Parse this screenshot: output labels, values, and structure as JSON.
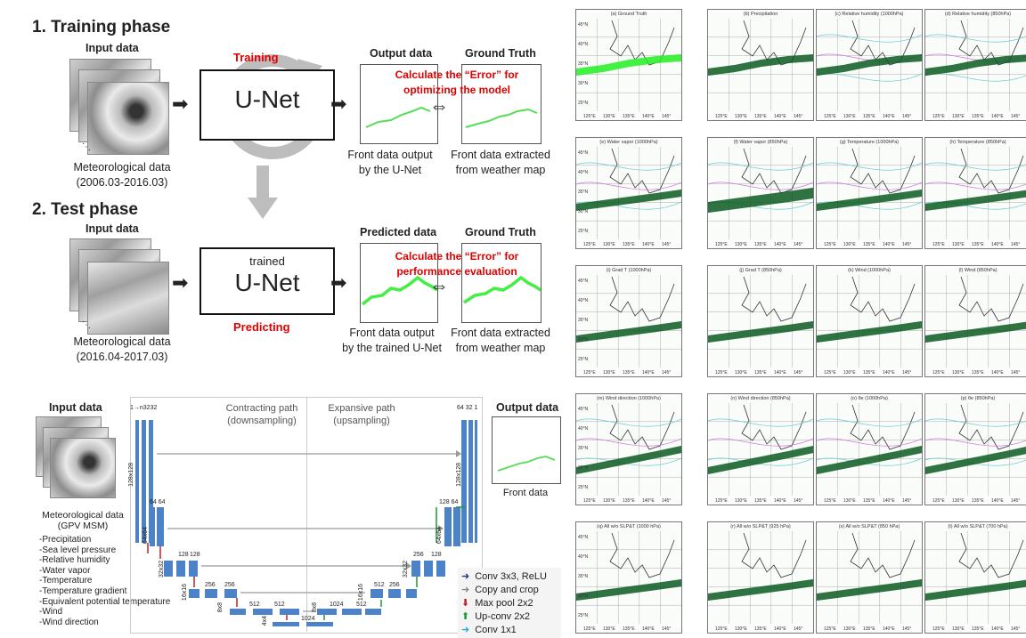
{
  "training": {
    "title": "1. Training phase",
    "input_label": "Input data",
    "input_caption": "Meteorological data",
    "input_range": "(2006.03-2016.03)",
    "net_label": "U-Net",
    "action": "Training",
    "output_label": "Output data",
    "truth_label": "Ground Truth",
    "error_line1": "Calculate the “Error” for",
    "error_line2": "optimizing the model",
    "output_caption1": "Front data output",
    "output_caption2": "by the U-Net",
    "truth_caption1": "Front data extracted",
    "truth_caption2": "from weather map"
  },
  "test": {
    "title": "2. Test phase",
    "input_label": "Input data",
    "input_caption": "Meteorological data",
    "input_range": "(2016.04-2017.03)",
    "net_sub": "trained",
    "net_label": "U-Net",
    "action": "Predicting",
    "output_label": "Predicted data",
    "truth_label": "Ground Truth",
    "error_line1": "Calculate the “Error” for",
    "error_line2": "performance evaluation",
    "output_caption1": "Front data output",
    "output_caption2": "by the trained U-Net",
    "truth_caption1": "Front data extracted",
    "truth_caption2": "from weather map"
  },
  "unet": {
    "input_label": "Input data",
    "input_caption1": "Meteorological data",
    "input_caption2": "(GPV MSM)",
    "variables": [
      "-Precipitation",
      "-Sea level pressure",
      "-Relative humidity",
      "-Water vapor",
      "-Temperature",
      "-Temperature gradient",
      "-Equivalent potential temperature",
      "-Wind",
      "-Wind direction"
    ],
    "contracting_title": "Contracting path",
    "contracting_sub": "(downsampling)",
    "expansive_title": "Expansive path",
    "expansive_sub": "(upsampling)",
    "output_label": "Output data",
    "output_caption": "Front data",
    "channels_top_left": "1→n3232",
    "channels_top_right": "64 32 1",
    "dims": {
      "d1": "128x128",
      "d2": "64x64",
      "d3": "32x32",
      "d4": "16x16",
      "d5": "8x8",
      "d6": "4x4"
    },
    "ch": {
      "c64": "64 64",
      "c128": "128",
      "c256": "256",
      "c512": "512",
      "c1024": "1024",
      "r128": "128 64",
      "r256": "256",
      "r512": "512"
    },
    "legend": [
      {
        "label": "Conv 3x3, ReLU",
        "color": "#1a3a7a"
      },
      {
        "label": "Copy and crop",
        "color": "#888888"
      },
      {
        "label": "Max pool 2x2",
        "color": "#c0202a"
      },
      {
        "label": "Up-conv 2x2",
        "color": "#1a9a3a"
      },
      {
        "label": "Conv 1x1",
        "color": "#30a8e0"
      }
    ]
  },
  "maps": {
    "rows": [
      [
        "(a) Ground Truth",
        "(b) Precipitation",
        "(c) Relative humidity (1000hPa)",
        "(d) Relative humidity (850hPa)"
      ],
      [
        "(e) Water vapor (1000hPa)",
        "(f) Water vapor (850hPa)",
        "(g) Temperature (1000hPa)",
        "(h) Temperature (850hPa)"
      ],
      [
        "(i) Grad T (1000hPa)",
        "(j) Grad T (850hPa)",
        "(k) Wind (1000hPa)",
        "(l) Wind (850hPa)"
      ],
      [
        "(m) Wind direction (1000hPa)",
        "(n) Wind direction (850hPa)",
        "(o) θe (1000hPa)",
        "(p) θe (850hPa)"
      ],
      [
        "(q) All w/o SLP&T (1000 hPa)",
        "(r) All w/o SLP&T (925 hPa)",
        "(s) All w/o SLP&T (850 hPa)",
        "(t) All w/o SLP&T (700 hPa)"
      ]
    ],
    "lat_labels": [
      "45°N",
      "40°N",
      "35°N",
      "30°N",
      "25°N"
    ],
    "lon_labels": [
      "125°E",
      "130°E",
      "135°E",
      "140°E",
      "145°"
    ],
    "front_color": "#0b5a22"
  }
}
